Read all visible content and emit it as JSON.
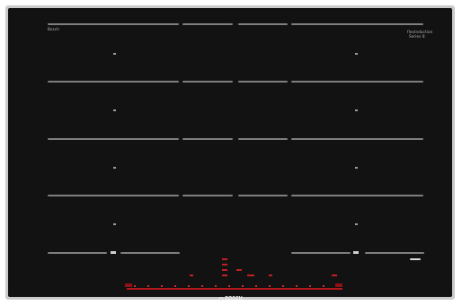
{
  "hob": {
    "brand": "BOSCH",
    "colors": {
      "glass": "#121212",
      "frame": "#c9cacb",
      "zone_line": "#7e7f80",
      "control_red": "#b3181c"
    },
    "top_left_label": "Bosch",
    "top_right_label": "flexInduction",
    "top_right_sublabel": "Series 8",
    "zone_rows": 5,
    "control_panel": {
      "icons": [
        "power-icon",
        "timer-icon",
        "lock-icon",
        "frying-sensor-icon",
        "move-mode-icon"
      ],
      "slider_positions": 15
    }
  }
}
